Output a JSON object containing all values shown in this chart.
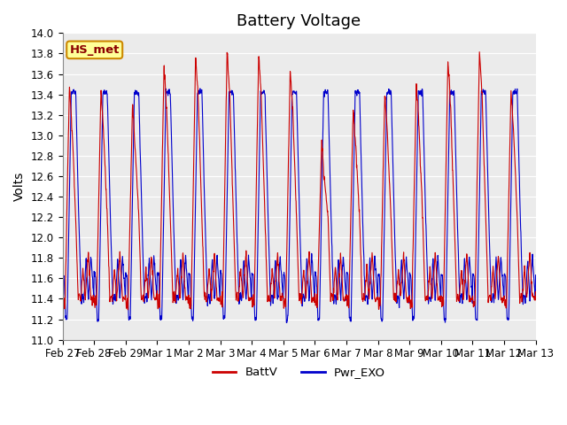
{
  "title": "Battery Voltage",
  "ylabel": "Volts",
  "ylim": [
    11.0,
    14.0
  ],
  "yticks": [
    11.0,
    11.2,
    11.4,
    11.6,
    11.8,
    12.0,
    12.2,
    12.4,
    12.6,
    12.8,
    13.0,
    13.2,
    13.4,
    13.6,
    13.8,
    14.0
  ],
  "x_tick_labels": [
    "Feb 27",
    "Feb 28",
    "Feb 29",
    "Mar 1",
    "Mar 2",
    "Mar 3",
    "Mar 4",
    "Mar 5",
    "Mar 6",
    "Mar 7",
    "Mar 8",
    "Mar 9",
    "Mar 10",
    "Mar 11",
    "Mar 12",
    "Mar 13"
  ],
  "batt_color": "#CC0000",
  "exo_color": "#0000CC",
  "legend_label_batt": "BattV",
  "legend_label_exo": "Pwr_EXO",
  "annotation_text": "HS_met",
  "annotation_bg": "#FFFF99",
  "annotation_border": "#CC8800",
  "plot_bg": "#EBEBEB",
  "title_fontsize": 13,
  "axis_fontsize": 10,
  "tick_fontsize": 8.5,
  "n_days": 15,
  "pts_per_day": 144
}
